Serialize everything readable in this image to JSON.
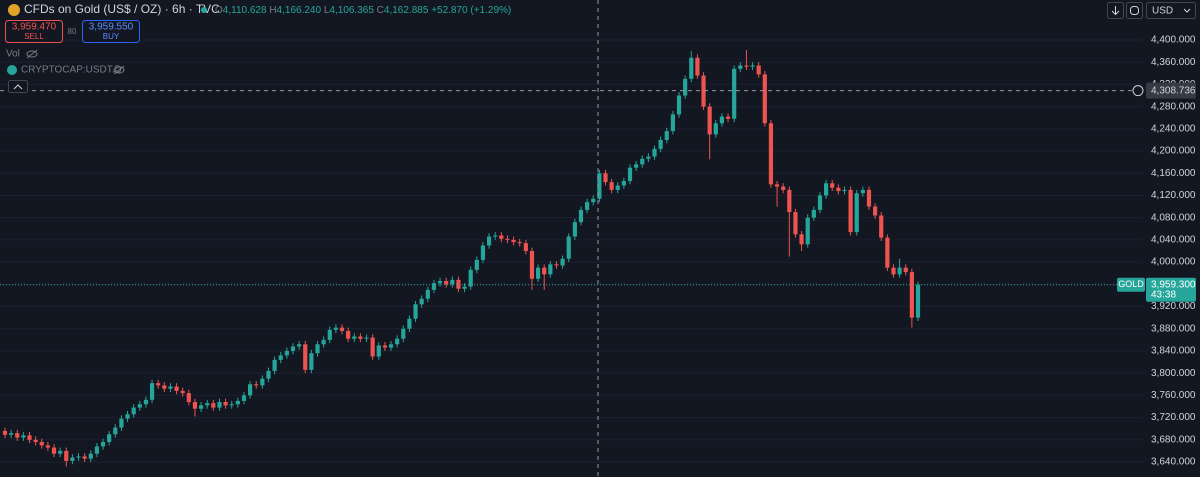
{
  "header": {
    "symbol": "CFDs on Gold (US$ / OZ) · 6h · TVC",
    "ohlc": {
      "open": {
        "label": "O",
        "value": "4,110.628"
      },
      "high": {
        "label": "H",
        "value": "4,166.240"
      },
      "low": {
        "label": "L",
        "value": "4,106.365"
      },
      "close": {
        "label": "C",
        "value": "4,162.885"
      },
      "change": "+52.870 (+1.29%)"
    },
    "sell": {
      "price": "3,959.470",
      "label": "SELL"
    },
    "spread": "80",
    "buy": {
      "price": "3,959.550",
      "label": "BUY"
    },
    "indicators": [
      "Vol",
      "CRYPTOCAP:USDT.D"
    ],
    "currency": "USD"
  },
  "chart_data": {
    "type": "candlestick",
    "up_color": "#26a69a",
    "down_color": "#ef5350",
    "grid": true,
    "ylim": [
      3613,
      4472
    ],
    "yticks": [
      {
        "value": 3640,
        "label": "3,640.000"
      },
      {
        "value": 3680,
        "label": "3,680.000"
      },
      {
        "value": 3720,
        "label": "3,720.000"
      },
      {
        "value": 3760,
        "label": "3,760.000"
      },
      {
        "value": 3800,
        "label": "3,800.000"
      },
      {
        "value": 3840,
        "label": "3,840.000"
      },
      {
        "value": 3880,
        "label": "3,880.000"
      },
      {
        "value": 3920,
        "label": "3,920.000"
      },
      {
        "value": 3960,
        "label": "3,960.000"
      },
      {
        "value": 4000,
        "label": "4,000.000"
      },
      {
        "value": 4040,
        "label": "4,040.000"
      },
      {
        "value": 4080,
        "label": "4,080.000"
      },
      {
        "value": 4120,
        "label": "4,120.000"
      },
      {
        "value": 4160,
        "label": "4,160.000"
      },
      {
        "value": 4200,
        "label": "4,200.000"
      },
      {
        "value": 4240,
        "label": "4,240.000"
      },
      {
        "value": 4280,
        "label": "4,280.000"
      },
      {
        "value": 4320,
        "label": "4,320.000"
      },
      {
        "value": 4360,
        "label": "4,360.000"
      },
      {
        "value": 4400,
        "label": "4,400.000"
      }
    ],
    "crosshair": {
      "value": 4308.736,
      "label": "4,308.736"
    },
    "last_price": {
      "name": "GOLD",
      "value": 3959.3,
      "label": "3,959.300",
      "countdown": "43:38"
    },
    "open": [
      3696,
      3689,
      3692,
      3684,
      3688,
      3680,
      3676,
      3670,
      3666,
      3655,
      3660,
      3642,
      3648,
      3650,
      3646,
      3655,
      3668,
      3676,
      3690,
      3702,
      3718,
      3726,
      3738,
      3744,
      3752,
      3782,
      3778,
      3772,
      3776,
      3768,
      3764,
      3748,
      3736,
      3742,
      3746,
      3738,
      3748,
      3742,
      3744,
      3750,
      3760,
      3780,
      3778,
      3790,
      3804,
      3824,
      3832,
      3840,
      3848,
      3852,
      3806,
      3836,
      3852,
      3860,
      3878,
      3882,
      3876,
      3862,
      3866,
      3862,
      3864,
      3830,
      3850,
      3846,
      3852,
      3862,
      3880,
      3898,
      3924,
      3934,
      3950,
      3962,
      3966,
      3960,
      3968,
      3952,
      3956,
      3986,
      4004,
      4030,
      4046,
      4048,
      4042,
      4040,
      4036,
      4034,
      4020,
      3970,
      3990,
      3978,
      3996,
      3994,
      4006,
      4046,
      4072,
      4094,
      4108,
      4114,
      4160,
      4144,
      4130,
      4138,
      4146,
      4170,
      4176,
      4186,
      4190,
      4204,
      4220,
      4236,
      4266,
      4300,
      4330,
      4368,
      4336,
      4280,
      4230,
      4250,
      4262,
      4258,
      4348,
      4354,
      4352,
      4354,
      4338,
      4250,
      4140,
      4136,
      4130,
      4090,
      4050,
      4032,
      4080,
      4094,
      4120,
      4142,
      4134,
      4128,
      4130,
      4054,
      4124,
      4130,
      4100,
      4084,
      4044,
      3990,
      3978,
      3990,
      3982,
      3900
    ],
    "high": [
      3702,
      3698,
      3698,
      3694,
      3694,
      3686,
      3682,
      3676,
      3672,
      3666,
      3666,
      3654,
      3656,
      3656,
      3661,
      3674,
      3682,
      3696,
      3708,
      3724,
      3732,
      3744,
      3750,
      3758,
      3788,
      3788,
      3784,
      3782,
      3782,
      3774,
      3770,
      3754,
      3748,
      3752,
      3752,
      3754,
      3754,
      3750,
      3756,
      3766,
      3786,
      3786,
      3796,
      3810,
      3830,
      3838,
      3846,
      3854,
      3858,
      3858,
      3842,
      3858,
      3866,
      3884,
      3888,
      3888,
      3882,
      3872,
      3872,
      3870,
      3870,
      3856,
      3856,
      3858,
      3868,
      3886,
      3904,
      3930,
      3940,
      3956,
      3968,
      3972,
      3972,
      3974,
      3974,
      3962,
      3992,
      4010,
      4036,
      4052,
      4054,
      4054,
      4048,
      4046,
      4042,
      4040,
      4026,
      3996,
      3996,
      4002,
      4002,
      4012,
      4052,
      4078,
      4100,
      4114,
      4120,
      4166,
      4166,
      4150,
      4144,
      4152,
      4176,
      4182,
      4192,
      4196,
      4210,
      4226,
      4242,
      4272,
      4306,
      4336,
      4380,
      4374,
      4342,
      4286,
      4256,
      4268,
      4268,
      4354,
      4360,
      4382,
      4360,
      4360,
      4344,
      4256,
      4146,
      4142,
      4136,
      4096,
      4056,
      4086,
      4100,
      4126,
      4148,
      4148,
      4140,
      4136,
      4136,
      4130,
      4136,
      4136,
      4106,
      4090,
      4050,
      3996,
      4006,
      3996,
      3988,
      3965
    ],
    "low": [
      3683,
      3683,
      3678,
      3678,
      3674,
      3670,
      3664,
      3660,
      3649,
      3649,
      3632,
      3636,
      3642,
      3640,
      3640,
      3649,
      3662,
      3670,
      3684,
      3696,
      3712,
      3720,
      3732,
      3738,
      3746,
      3772,
      3766,
      3766,
      3762,
      3758,
      3742,
      3722,
      3730,
      3736,
      3732,
      3732,
      3736,
      3736,
      3738,
      3744,
      3754,
      3772,
      3772,
      3784,
      3798,
      3818,
      3826,
      3834,
      3842,
      3800,
      3800,
      3830,
      3846,
      3854,
      3872,
      3870,
      3856,
      3856,
      3856,
      3856,
      3824,
      3824,
      3840,
      3840,
      3846,
      3856,
      3874,
      3892,
      3918,
      3928,
      3944,
      3956,
      3954,
      3954,
      3946,
      3946,
      3950,
      3980,
      3998,
      4024,
      4040,
      4036,
      4034,
      4030,
      4028,
      4014,
      3950,
      3964,
      3950,
      3972,
      3988,
      3988,
      4000,
      4040,
      4066,
      4088,
      4102,
      4108,
      4138,
      4124,
      4124,
      4132,
      4140,
      4164,
      4170,
      4180,
      4184,
      4198,
      4214,
      4230,
      4260,
      4294,
      4324,
      4330,
      4274,
      4185,
      4224,
      4244,
      4252,
      4252,
      4342,
      4346,
      4346,
      4332,
      4244,
      4134,
      4100,
      4124,
      4010,
      4044,
      4020,
      4026,
      4074,
      4088,
      4114,
      4128,
      4122,
      4122,
      4048,
      4048,
      4118,
      4094,
      4078,
      4038,
      3984,
      3972,
      3972,
      3976,
      3882,
      3894
    ],
    "close": [
      3689,
      3692,
      3684,
      3688,
      3680,
      3676,
      3670,
      3666,
      3655,
      3660,
      3642,
      3648,
      3650,
      3646,
      3655,
      3668,
      3676,
      3690,
      3702,
      3718,
      3726,
      3738,
      3744,
      3752,
      3782,
      3778,
      3772,
      3776,
      3768,
      3764,
      3748,
      3736,
      3742,
      3746,
      3738,
      3748,
      3742,
      3744,
      3750,
      3760,
      3780,
      3778,
      3790,
      3804,
      3824,
      3832,
      3840,
      3848,
      3852,
      3806,
      3836,
      3852,
      3860,
      3878,
      3882,
      3876,
      3862,
      3866,
      3862,
      3864,
      3830,
      3850,
      3846,
      3852,
      3862,
      3880,
      3898,
      3924,
      3934,
      3950,
      3962,
      3966,
      3960,
      3968,
      3952,
      3956,
      3986,
      4004,
      4030,
      4046,
      4048,
      4042,
      4040,
      4036,
      4034,
      4020,
      3970,
      3990,
      3978,
      3996,
      3994,
      4006,
      4046,
      4072,
      4094,
      4108,
      4114,
      4160,
      4144,
      4130,
      4138,
      4146,
      4170,
      4176,
      4186,
      4190,
      4204,
      4220,
      4236,
      4266,
      4300,
      4330,
      4368,
      4336,
      4280,
      4230,
      4250,
      4262,
      4258,
      4348,
      4354,
      4352,
      4354,
      4338,
      4250,
      4140,
      4136,
      4130,
      4090,
      4050,
      4032,
      4080,
      4094,
      4120,
      4142,
      4134,
      4128,
      4130,
      4054,
      4124,
      4130,
      4100,
      4084,
      4044,
      3990,
      3978,
      3990,
      3982,
      3900,
      3959.3
    ]
  }
}
